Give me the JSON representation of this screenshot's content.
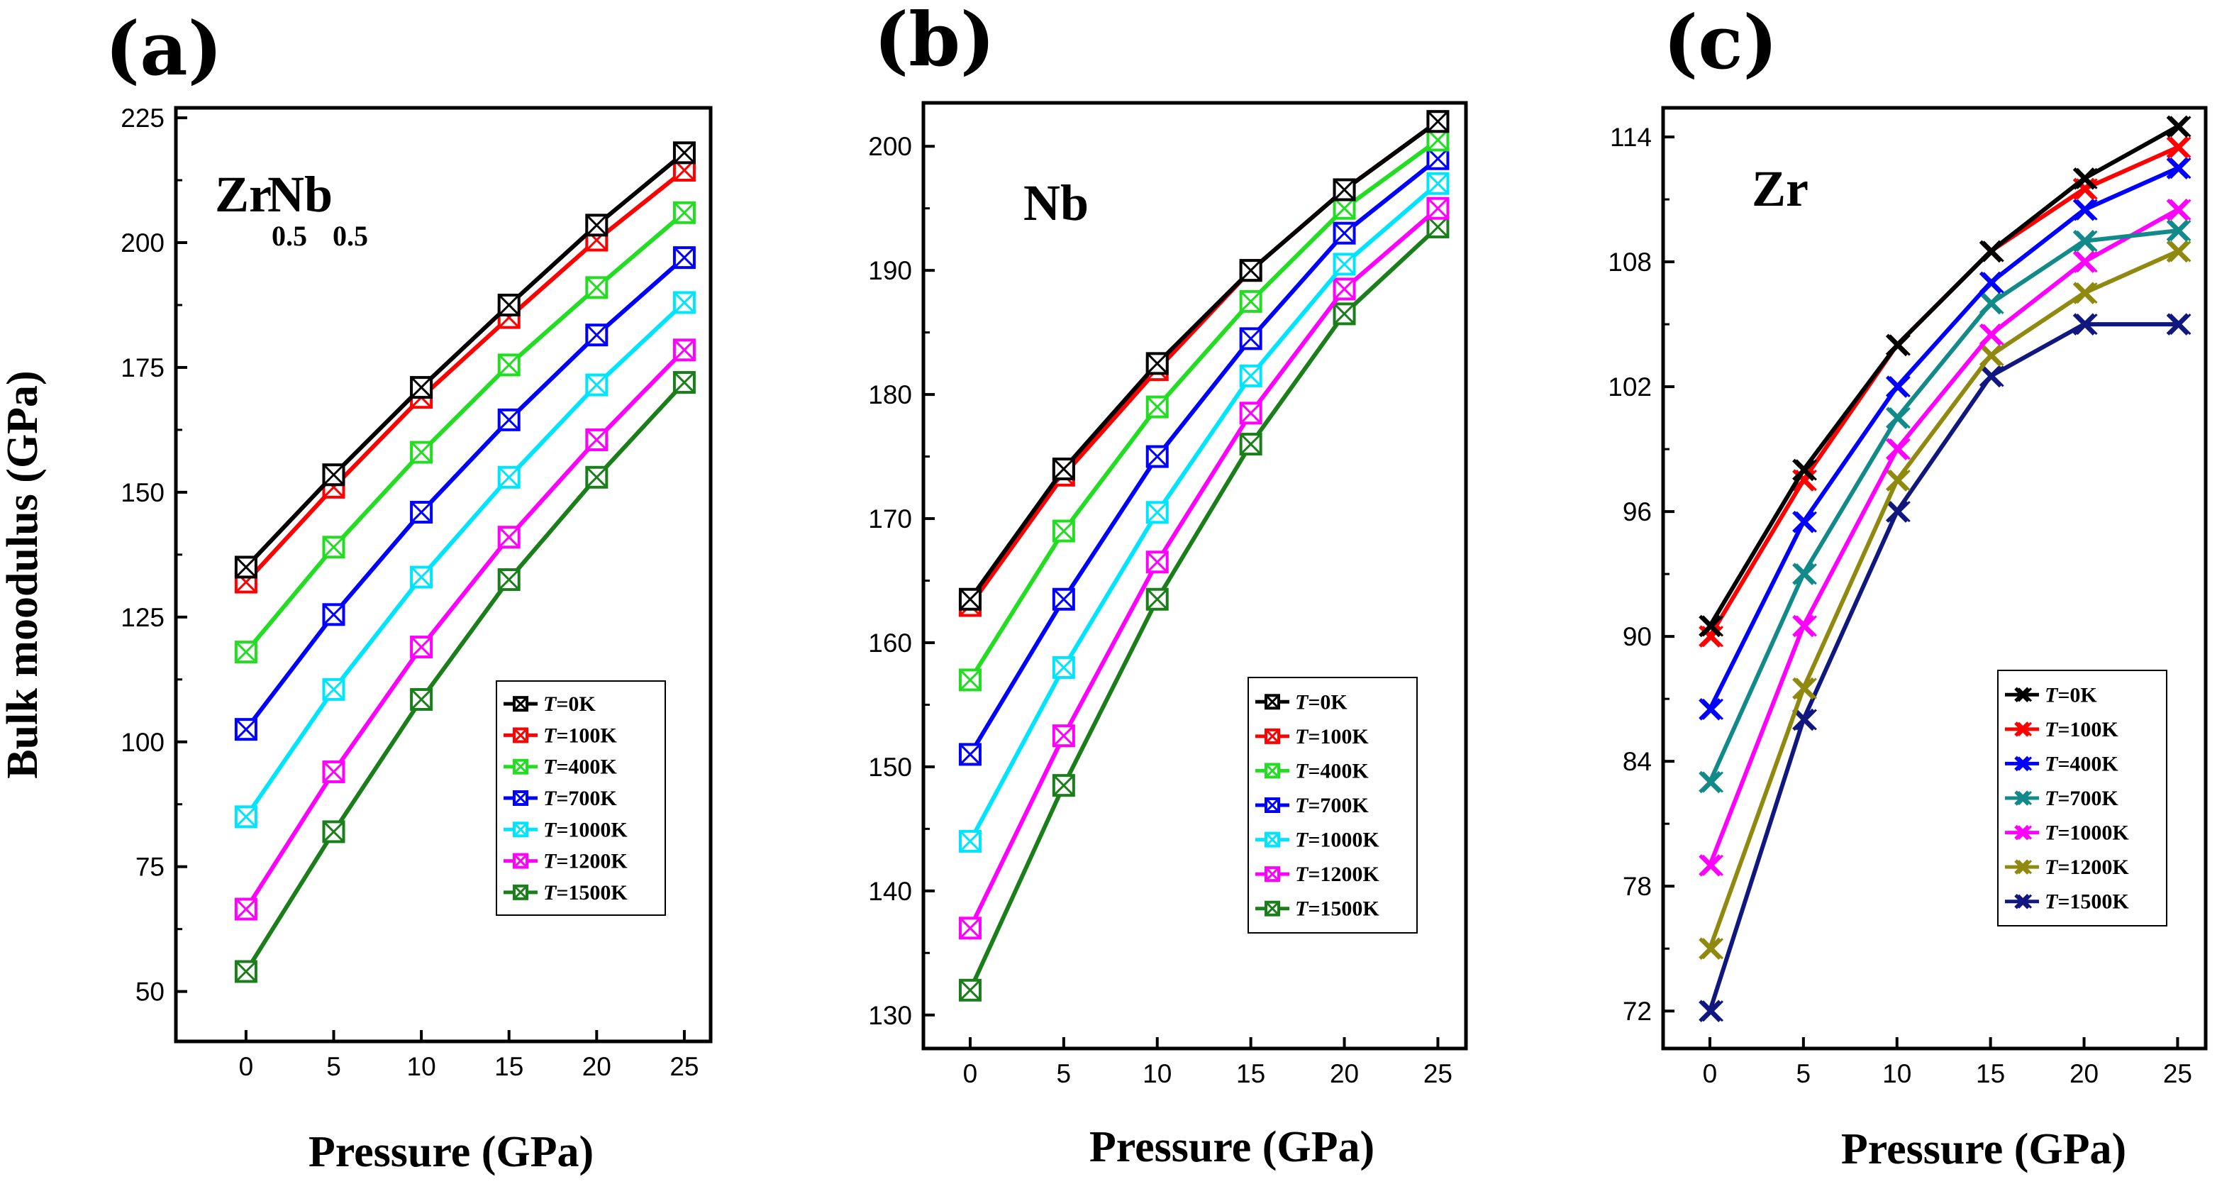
{
  "figure": {
    "ylabel": "Bulk moodulus (GPa)",
    "series_colors": {
      "T=0K": "#000000",
      "T=100K": "#ff0000",
      "T=400K": "#22dd22",
      "T=700K": "#0000ff",
      "T=1000K": "#00e5ff",
      "T=1200K": "#ff00ff",
      "T=1500K": "#1a7f1a"
    }
  },
  "chart_data": [
    {
      "type": "line",
      "panel": "(a)",
      "annotation": {
        "main1": "Zr",
        "sub1": "0.5",
        "main2": "Nb",
        "sub2": "0.5"
      },
      "xlabel": "Pressure (GPa)",
      "ylabel": "Bulk moodulus (GPa)",
      "x": [
        0,
        5,
        10,
        15,
        20,
        25
      ],
      "xlim": [
        -4,
        26.5
      ],
      "xticks": [
        "0",
        "5",
        "10",
        "15",
        "20",
        "25"
      ],
      "ylim": [
        40,
        227
      ],
      "yticks": [
        "50",
        "75",
        "100",
        "125",
        "150",
        "175",
        "200",
        "225"
      ],
      "marker": "box",
      "legend_position": "lower-right",
      "legend_title_prefix": "T",
      "series": [
        {
          "name": "T=0K",
          "label_var": "T",
          "label_rest": "=0K",
          "color": "#000000",
          "values": [
            135,
            153.5,
            171,
            187.5,
            203.5,
            218
          ]
        },
        {
          "name": "T=100K",
          "label_var": "T",
          "label_rest": "=100K",
          "color": "#ff0000",
          "values": [
            132,
            151,
            169,
            185,
            200.5,
            214.5
          ]
        },
        {
          "name": "T=400K",
          "label_var": "T",
          "label_rest": "=400K",
          "color": "#22dd22",
          "values": [
            118,
            139,
            158,
            175.5,
            191,
            206
          ]
        },
        {
          "name": "T=700K",
          "label_var": "T",
          "label_rest": "=700K",
          "color": "#0000ff",
          "values": [
            102.5,
            125.5,
            146,
            164.5,
            181.5,
            197
          ]
        },
        {
          "name": "T=1000K",
          "label_var": "T",
          "label_rest": "=1000K",
          "color": "#00e5ff",
          "values": [
            85,
            110.5,
            133,
            153,
            171.5,
            188
          ]
        },
        {
          "name": "T=1200K",
          "label_var": "T",
          "label_rest": "=1200K",
          "color": "#ff00ff",
          "values": [
            66.5,
            94,
            119,
            141,
            160.5,
            178.5
          ]
        },
        {
          "name": "T=1500K",
          "label_var": "T",
          "label_rest": "=1500K",
          "color": "#1a7f1a",
          "values": [
            54,
            82,
            108.5,
            132.5,
            153,
            172
          ]
        }
      ]
    },
    {
      "type": "line",
      "panel": "(b)",
      "annotation": {
        "main1": "Nb"
      },
      "xlabel": "Pressure (GPa)",
      "ylabel": "",
      "x": [
        0,
        5,
        10,
        15,
        20,
        25
      ],
      "xlim": [
        -2.5,
        26.5
      ],
      "xticks": [
        "0",
        "5",
        "10",
        "15",
        "20",
        "25"
      ],
      "ylim": [
        127.3,
        203.5
      ],
      "yticks": [
        "130",
        "140",
        "150",
        "160",
        "170",
        "180",
        "190",
        "200"
      ],
      "marker": "xbox",
      "legend_position": "lower-right",
      "series": [
        {
          "name": "T=0K",
          "label_var": "T",
          "label_rest": "=0K",
          "color": "#000000",
          "values": [
            163.5,
            174,
            182.5,
            190,
            196.5,
            202
          ]
        },
        {
          "name": "T=100K",
          "label_var": "T",
          "label_rest": "=100K",
          "color": "#ff0000",
          "values": [
            163,
            173.5,
            182,
            190,
            196.5,
            202
          ]
        },
        {
          "name": "T=400K",
          "label_var": "T",
          "label_rest": "=400K",
          "color": "#22dd22",
          "values": [
            157,
            169,
            179,
            187.5,
            195,
            200.5
          ]
        },
        {
          "name": "T=700K",
          "label_var": "T",
          "label_rest": "=700K",
          "color": "#0000ff",
          "values": [
            151,
            163.5,
            175,
            184.5,
            193,
            199
          ]
        },
        {
          "name": "T=1000K",
          "label_var": "T",
          "label_rest": "=1000K",
          "color": "#00e5ff",
          "values": [
            144,
            158,
            170.5,
            181.5,
            190.5,
            197
          ]
        },
        {
          "name": "T=1200K",
          "label_var": "T",
          "label_rest": "=1200K",
          "color": "#ff00ff",
          "values": [
            137,
            152.5,
            166.5,
            178.5,
            188.5,
            195
          ]
        },
        {
          "name": "T=1500K",
          "label_var": "T",
          "label_rest": "=1500K",
          "color": "#1a7f1a",
          "values": [
            132,
            148.5,
            163.5,
            176,
            186.5,
            193.5
          ]
        }
      ]
    },
    {
      "type": "line",
      "panel": "(c)",
      "annotation": {
        "main1": "Zr"
      },
      "xlabel": "Pressure (GPa)",
      "ylabel": "",
      "x": [
        0,
        5,
        10,
        15,
        20,
        25
      ],
      "xlim": [
        -2.5,
        26.5
      ],
      "xticks": [
        "0",
        "5",
        "10",
        "15",
        "20",
        "25"
      ],
      "ylim": [
        70.2,
        115.4
      ],
      "yticks": [
        "72",
        "78",
        "84",
        "90",
        "96",
        "102",
        "108",
        "114"
      ],
      "marker": "cross",
      "legend_position": "lower-right",
      "series": [
        {
          "name": "T=0K",
          "label_var": "T",
          "label_rest": "=0K",
          "color": "#000000",
          "values": [
            90.5,
            98,
            104,
            108.5,
            112,
            114.5
          ]
        },
        {
          "name": "T=100K",
          "label_var": "T",
          "label_rest": "=100K",
          "color": "#ff0000",
          "values": [
            90,
            97.5,
            104,
            108.5,
            111.5,
            113.5
          ]
        },
        {
          "name": "T=400K",
          "label_var": "T",
          "label_rest": "=400K",
          "color": "#0000ff",
          "values": [
            86.5,
            95.5,
            102,
            107,
            110.5,
            112.5
          ]
        },
        {
          "name": "T=700K",
          "label_var": "T",
          "label_rest": "=700K",
          "color": "#138a8a",
          "values": [
            83,
            93,
            100.5,
            106,
            109,
            109.5
          ]
        },
        {
          "name": "T=1000K",
          "label_var": "T",
          "label_rest": "=1000K",
          "color": "#ff00ff",
          "values": [
            79,
            90.5,
            99,
            104.5,
            108,
            110.5
          ]
        },
        {
          "name": "T=1200K",
          "label_var": "T",
          "label_rest": "=1200K",
          "color": "#8f8a0f",
          "values": [
            75,
            87.5,
            97.5,
            103.5,
            106.5,
            108.5
          ]
        },
        {
          "name": "T=1500K",
          "label_var": "T",
          "label_rest": "=1500K",
          "color": "#101880",
          "values": [
            72,
            86,
            96,
            102.5,
            105,
            105
          ]
        }
      ]
    }
  ]
}
